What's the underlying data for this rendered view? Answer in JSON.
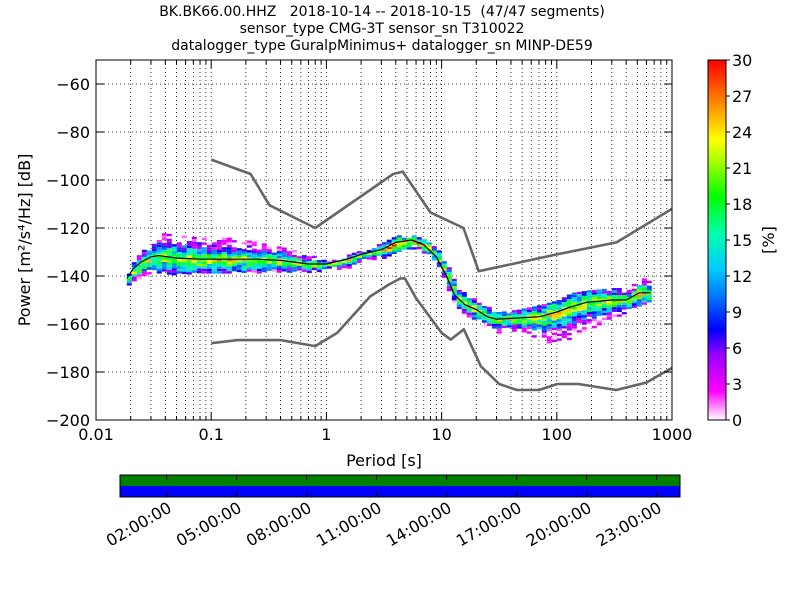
{
  "title_lines": [
    "BK.BK66.00.HHZ   2018-10-14 -- 2018-10-15  (47/47 segments)",
    "sensor_type CMG-3T sensor_sn T310022",
    "datalogger_type GuralpMinimus+ datalogger_sn MINP-DE59"
  ],
  "chart_data": [
    {
      "type": "heatmap",
      "subtype": "probabilistic-power-spectral-density",
      "xlabel": "Period [s]",
      "ylabel": "Power [m²/s⁴/Hz] [dB]",
      "xscale": "log",
      "xlim": [
        0.01,
        1000
      ],
      "ylim": [
        -200,
        -50
      ],
      "x_ticks": [
        0.01,
        0.1,
        1,
        10,
        100,
        1000
      ],
      "x_tick_labels": [
        "0.01",
        "0.1",
        "1",
        "10",
        "100",
        "1000"
      ],
      "y_ticks": [
        -200,
        -180,
        -160,
        -140,
        -120,
        -100,
        -80,
        -60
      ],
      "y_tick_labels": [
        "−200",
        "−180",
        "−160",
        "−140",
        "−120",
        "−100",
        "−80",
        "−60"
      ],
      "grid": "dotted",
      "colorbar": {
        "label": "[%]",
        "range": [
          0,
          30
        ],
        "ticks": [
          0,
          3,
          6,
          9,
          12,
          15,
          18,
          21,
          24,
          27,
          30
        ],
        "tick_labels": [
          "0",
          "3",
          "6",
          "9",
          "12",
          "15",
          "18",
          "21",
          "24",
          "27",
          "30"
        ]
      },
      "noise_models": {
        "high": {
          "color": "#666666",
          "points": [
            [
              0.1,
              -91.5
            ],
            [
              0.22,
              -97.5
            ],
            [
              0.32,
              -110.5
            ],
            [
              0.8,
              -120
            ],
            [
              3.8,
              -97.5
            ],
            [
              4.6,
              -96.5
            ],
            [
              8,
              -113.5
            ],
            [
              15.5,
              -120
            ],
            [
              21,
              -138
            ],
            [
              100,
              -131
            ],
            [
              330,
              -126
            ],
            [
              1000,
              -112
            ]
          ]
        },
        "low": {
          "color": "#666666",
          "points": [
            [
              0.1,
              -168
            ],
            [
              0.17,
              -166.7
            ],
            [
              0.4,
              -166.7
            ],
            [
              0.8,
              -169.2
            ],
            [
              1.24,
              -163.7
            ],
            [
              2.4,
              -148.5
            ],
            [
              3.5,
              -143.5
            ],
            [
              4.4,
              -141
            ],
            [
              4.8,
              -141
            ],
            [
              6,
              -149.2
            ],
            [
              10,
              -163.7
            ],
            [
              12,
              -166.5
            ],
            [
              15.6,
              -162.2
            ],
            [
              21.9,
              -177.6
            ],
            [
              31.6,
              -185
            ],
            [
              45,
              -187.5
            ],
            [
              70,
              -187.5
            ],
            [
              101,
              -185
            ],
            [
              154,
              -185
            ],
            [
              328,
              -187.5
            ],
            [
              600,
              -184.4
            ],
            [
              1000,
              -178.3
            ]
          ]
        }
      },
      "mean_curve": {
        "color": "#000000",
        "points": [
          [
            0.0185,
            -141
          ],
          [
            0.021,
            -137
          ],
          [
            0.025,
            -134
          ],
          [
            0.03,
            -132
          ],
          [
            0.035,
            -131.5
          ],
          [
            0.05,
            -132.5
          ],
          [
            0.08,
            -133
          ],
          [
            0.15,
            -133
          ],
          [
            0.25,
            -133
          ],
          [
            0.4,
            -133.5
          ],
          [
            0.7,
            -135
          ],
          [
            1,
            -135
          ],
          [
            1.5,
            -133
          ],
          [
            2,
            -131
          ],
          [
            3,
            -129
          ],
          [
            4,
            -126
          ],
          [
            5.5,
            -125
          ],
          [
            7,
            -127
          ],
          [
            9,
            -132
          ],
          [
            11,
            -140
          ],
          [
            13,
            -148
          ],
          [
            16,
            -152
          ],
          [
            20,
            -154
          ],
          [
            25,
            -157
          ],
          [
            30,
            -158
          ],
          [
            45,
            -157.5
          ],
          [
            70,
            -157
          ],
          [
            100,
            -155
          ],
          [
            130,
            -153
          ],
          [
            180,
            -151
          ],
          [
            300,
            -150
          ],
          [
            400,
            -150
          ],
          [
            520,
            -147
          ],
          [
            650,
            -147
          ]
        ]
      },
      "density_band": {
        "x": [
          0.0185,
          0.021,
          0.025,
          0.03,
          0.035,
          0.05,
          0.08,
          0.15,
          0.25,
          0.4,
          0.7,
          1,
          1.5,
          2,
          3,
          4,
          5.5,
          7,
          9,
          11,
          13,
          16,
          20,
          25,
          30,
          45,
          70,
          100,
          130,
          180,
          300,
          400,
          520,
          650
        ],
        "upper": [
          -139,
          -133,
          -129,
          -126,
          -122,
          -123,
          -124,
          -124,
          -126,
          -128,
          -131,
          -134,
          -131,
          -129,
          -126,
          -123,
          -123,
          -125,
          -129,
          -136,
          -144,
          -148,
          -150,
          -153,
          -155,
          -154,
          -152,
          -150,
          -147,
          -146,
          -145,
          -145,
          -141,
          -141
        ],
        "lower": [
          -145,
          -142,
          -140,
          -138,
          -138,
          -139,
          -139,
          -138,
          -138,
          -138,
          -138,
          -137,
          -136,
          -134,
          -132,
          -130,
          -128,
          -131,
          -137,
          -145,
          -154,
          -157,
          -160,
          -162,
          -163,
          -163,
          -166,
          -169,
          -165,
          -162,
          -157,
          -155,
          -154,
          -149
        ]
      }
    },
    {
      "type": "heatmap",
      "subtype": "data-coverage-bar",
      "x_tick_labels": [
        "02:00:00",
        "05:00:00",
        "08:00:00",
        "11:00:00",
        "14:00:00",
        "17:00:00",
        "20:00:00",
        "23:00:00"
      ],
      "x_tick_hours": [
        2,
        5,
        8,
        11,
        14,
        17,
        20,
        23
      ],
      "range_hours": [
        0,
        24
      ],
      "rows": [
        {
          "color": "#007f00",
          "fraction": 1.0
        },
        {
          "color": "#0000ff",
          "fraction": 1.0
        }
      ]
    }
  ]
}
